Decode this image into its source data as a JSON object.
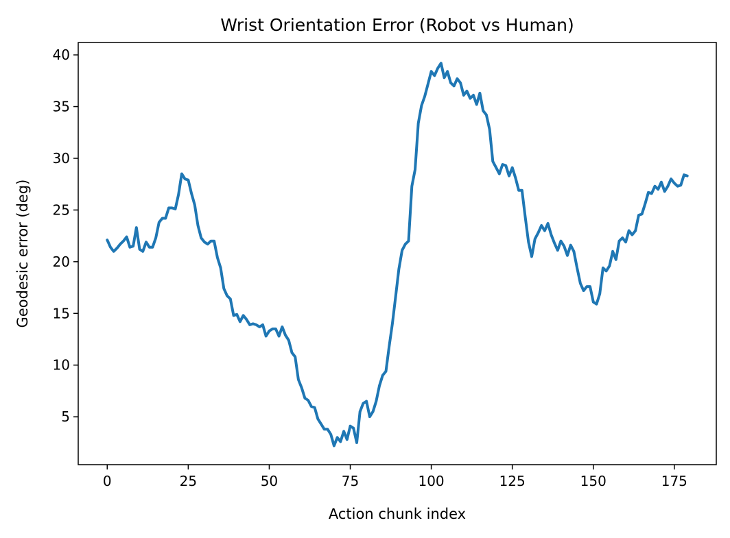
{
  "chart_data": {
    "type": "line",
    "title": "Wrist Orientation Error (Robot vs Human)",
    "xlabel": "Action chunk index",
    "ylabel": "Geodesic error (deg)",
    "xlim": [
      -8.95,
      187.95
    ],
    "ylim": [
      0.37,
      41.2
    ],
    "xticks": [
      0,
      25,
      50,
      75,
      100,
      125,
      150,
      175
    ],
    "yticks": [
      5,
      10,
      15,
      20,
      25,
      30,
      35,
      40
    ],
    "grid": false,
    "series": [
      {
        "color": "#1f77b4",
        "x": [
          0,
          1,
          2,
          3,
          4,
          5,
          6,
          7,
          8,
          9,
          10,
          11,
          12,
          13,
          14,
          15,
          16,
          17,
          18,
          19,
          20,
          21,
          22,
          23,
          24,
          25,
          26,
          27,
          28,
          29,
          30,
          31,
          32,
          33,
          34,
          35,
          36,
          37,
          38,
          39,
          40,
          41,
          42,
          43,
          44,
          45,
          46,
          47,
          48,
          49,
          50,
          51,
          52,
          53,
          54,
          55,
          56,
          57,
          58,
          59,
          60,
          61,
          62,
          63,
          64,
          65,
          66,
          67,
          68,
          69,
          70,
          71,
          72,
          73,
          74,
          75,
          76,
          77,
          78,
          79,
          80,
          81,
          82,
          83,
          84,
          85,
          86,
          87,
          88,
          89,
          90,
          91,
          92,
          93,
          94,
          95,
          96,
          97,
          98,
          99,
          100,
          101,
          102,
          103,
          104,
          105,
          106,
          107,
          108,
          109,
          110,
          111,
          112,
          113,
          114,
          115,
          116,
          117,
          118,
          119,
          120,
          121,
          122,
          123,
          124,
          125,
          126,
          127,
          128,
          129,
          130,
          131,
          132,
          133,
          134,
          135,
          136,
          137,
          138,
          139,
          140,
          141,
          142,
          143,
          144,
          145,
          146,
          147,
          148,
          149,
          150,
          151,
          152,
          153,
          154,
          155,
          156,
          157,
          158,
          159,
          160,
          161,
          162,
          163,
          164,
          165,
          166,
          167,
          168,
          169,
          170,
          171,
          172,
          173,
          174,
          175,
          176,
          177,
          178,
          179
        ],
        "values": [
          22.1,
          21.4,
          21.0,
          21.3,
          21.7,
          22.0,
          22.4,
          21.4,
          21.5,
          23.3,
          21.2,
          21.0,
          21.9,
          21.4,
          21.4,
          22.3,
          23.8,
          24.2,
          24.2,
          25.2,
          25.2,
          25.1,
          26.5,
          28.5,
          28.0,
          27.9,
          26.6,
          25.5,
          23.5,
          22.3,
          21.9,
          21.7,
          22.0,
          22.0,
          20.4,
          19.4,
          17.4,
          16.7,
          16.4,
          14.8,
          14.9,
          14.2,
          14.8,
          14.4,
          13.9,
          14.0,
          13.9,
          13.7,
          13.9,
          12.8,
          13.3,
          13.5,
          13.5,
          12.8,
          13.7,
          12.9,
          12.4,
          11.2,
          10.8,
          8.6,
          7.8,
          6.8,
          6.6,
          6.0,
          5.9,
          4.8,
          4.3,
          3.8,
          3.8,
          3.3,
          2.2,
          3.0,
          2.6,
          3.6,
          2.8,
          4.1,
          3.9,
          2.5,
          5.5,
          6.3,
          6.5,
          5.0,
          5.5,
          6.5,
          8.0,
          9.0,
          9.4,
          11.8,
          14.0,
          16.6,
          19.3,
          21.1,
          21.7,
          22.0,
          27.3,
          28.9,
          33.4,
          35.1,
          36.0,
          37.2,
          38.4,
          38.0,
          38.7,
          39.2,
          37.8,
          38.4,
          37.3,
          37.0,
          37.7,
          37.3,
          36.1,
          36.5,
          35.8,
          36.1,
          35.2,
          36.3,
          34.6,
          34.2,
          32.8,
          29.7,
          29.1,
          28.5,
          29.4,
          29.3,
          28.3,
          29.1,
          28.1,
          26.9,
          26.9,
          24.3,
          21.9,
          20.5,
          22.2,
          22.8,
          23.5,
          23.0,
          23.7,
          22.6,
          21.8,
          21.1,
          22.0,
          21.5,
          20.6,
          21.6,
          21.0,
          19.4,
          17.9,
          17.2,
          17.6,
          17.6,
          16.1,
          15.9,
          16.9,
          19.4,
          19.1,
          19.6,
          21.0,
          20.2,
          22.0,
          22.3,
          21.9,
          23.0,
          22.6,
          23.0,
          24.5,
          24.6,
          25.6,
          26.7,
          26.6,
          27.3,
          27.0,
          27.7,
          26.8,
          27.3,
          28.0,
          27.6,
          27.3,
          27.4,
          28.4,
          28.3
        ]
      }
    ]
  }
}
